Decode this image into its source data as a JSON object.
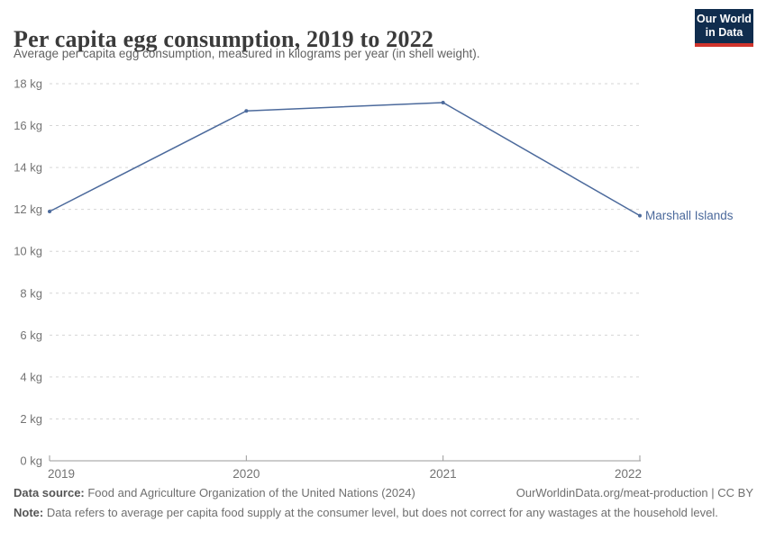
{
  "header": {
    "title": "Per capita egg consumption, 2019 to 2022",
    "subtitle": "Average per capita egg consumption, measured in kilograms per year (in shell weight).",
    "logo": {
      "line1": "Our World",
      "line2": "in Data",
      "bg_color": "#102d4e",
      "accent_color": "#d0342c"
    }
  },
  "chart_data": {
    "type": "line",
    "title": "Per capita egg consumption, 2019 to 2022",
    "x": [
      2019,
      2020,
      2021,
      2022
    ],
    "x_tick_labels": [
      "2019",
      "2020",
      "2021",
      "2022"
    ],
    "series": [
      {
        "name": "Marshall Islands",
        "values": [
          11.9,
          16.7,
          17.1,
          11.7
        ],
        "color": "#4c6a9c"
      }
    ],
    "xlabel": "",
    "ylabel": "",
    "ylim": [
      0,
      18
    ],
    "ytick_step": 2,
    "ytick_suffix": " kg",
    "grid": "horizontal-dashed",
    "legend": "end-of-line-label",
    "colors": {
      "gridline": "#d6d6d6",
      "axis_line": "#9a9a9a",
      "tick_label": "#737373"
    }
  },
  "footer": {
    "datasource_label": "Data source:",
    "datasource_text": " Food and Agriculture Organization of the United Nations (2024)",
    "link_text": "OurWorldinData.org/meat-production | CC BY",
    "note_label": "Note:",
    "note_text": " Data refers to average per capita food supply at the consumer level, but does not correct for any wastages at the household level."
  }
}
